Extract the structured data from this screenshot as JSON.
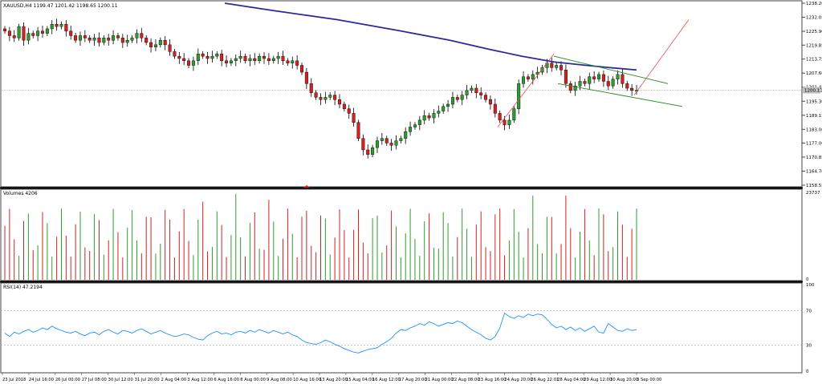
{
  "chart_data": [
    {
      "type": "candlestick",
      "title": "XAUUSD,H4  1199.47 1201.42 1198.65 1200.11",
      "current_price_label": "1200.11",
      "current_price": 1200.11,
      "ylim": [
        1158.55,
        1238.2
      ],
      "y_ticks": [
        "1238.20",
        "1232.05",
        "1225.90",
        "1219.85",
        "1213.75",
        "1207.60",
        "1201.45",
        "1195.30",
        "1189.15",
        "1183.00",
        "1177.00",
        "1170.85",
        "1164.70",
        "1158.55"
      ],
      "x_ticks": [
        "23 Jul 2018",
        "24 Jul 16:00",
        "26 Jul 00:00",
        "27 Jul 08:00",
        "30 Jul 12:00",
        "31 Jul 20:00",
        "2 Aug 04:00",
        "3 Aug 12:00",
        "6 Aug 16:00",
        "8 Aug 00:00",
        "9 Aug 08:00",
        "10 Aug 16:00",
        "13 Aug 20:00",
        "15 Aug 04:00",
        "16 Aug 12:00",
        "17 Aug 20:00",
        "21 Aug 00:00",
        "22 Aug 08:00",
        "23 Aug 16:00",
        "24 Aug 20:00",
        "26 Aug 22:01",
        "28 Aug 04:00",
        "29 Aug 12:00",
        "30 Aug 20:00",
        "3 Sep 00:00"
      ],
      "candles_close": [
        1226,
        1224,
        1223,
        1228,
        1222,
        1225,
        1224,
        1226,
        1225,
        1227,
        1229,
        1228,
        1229,
        1226,
        1224,
        1222,
        1224,
        1223,
        1222,
        1223,
        1221,
        1223,
        1222,
        1224,
        1223,
        1221,
        1222,
        1223,
        1225,
        1223,
        1221,
        1219,
        1220,
        1222,
        1220,
        1217,
        1215,
        1214,
        1213,
        1211,
        1213,
        1216,
        1215,
        1214,
        1215,
        1216,
        1213,
        1212,
        1213,
        1214,
        1215,
        1213,
        1214,
        1213,
        1215,
        1214,
        1213,
        1214,
        1215,
        1213,
        1212,
        1213,
        1211,
        1208,
        1203,
        1199,
        1197,
        1196,
        1197,
        1198,
        1196,
        1194,
        1192,
        1190,
        1186,
        1179,
        1174,
        1172,
        1175,
        1178,
        1179,
        1177,
        1176,
        1178,
        1179,
        1182,
        1184,
        1185,
        1187,
        1189,
        1188,
        1190,
        1191,
        1193,
        1194,
        1197,
        1196,
        1198,
        1200,
        1201,
        1199,
        1198,
        1196,
        1194,
        1190,
        1187,
        1185,
        1187,
        1192,
        1203,
        1206,
        1205,
        1207,
        1208,
        1210,
        1212,
        1210,
        1211,
        1209,
        1203,
        1200,
        1202,
        1204,
        1203,
        1206,
        1205,
        1207,
        1204,
        1202,
        1205,
        1207,
        1203,
        1201,
        1200,
        1200
      ]
    },
    {
      "type": "bar",
      "title": "Volumes 4206",
      "y_ticks": [
        "23737",
        "0"
      ],
      "ylim": [
        0,
        23737
      ]
    },
    {
      "type": "line",
      "title": "RSI(14) 47.2194",
      "y_ticks": [
        "100",
        "70",
        "30",
        "0"
      ],
      "ylim": [
        0,
        100
      ],
      "levels": [
        70,
        30
      ],
      "values": [
        44,
        40,
        45,
        43,
        46,
        48,
        45,
        47,
        50,
        48,
        52,
        49,
        47,
        45,
        44,
        46,
        43,
        41,
        44,
        45,
        42,
        46,
        48,
        45,
        43,
        47,
        46,
        44,
        47,
        49,
        46,
        43,
        45,
        47,
        44,
        42,
        40,
        41,
        43,
        42,
        39,
        37,
        36,
        41,
        44,
        46,
        43,
        44,
        42,
        45,
        46,
        44,
        47,
        45,
        48,
        46,
        44,
        47,
        45,
        43,
        45,
        42,
        40,
        36,
        33,
        32,
        31,
        33,
        36,
        34,
        31,
        29,
        26,
        24,
        22,
        21,
        23,
        25,
        26,
        27,
        31,
        34,
        38,
        44,
        48,
        47,
        50,
        52,
        55,
        53,
        57,
        55,
        52,
        54,
        56,
        55,
        58,
        56,
        52,
        48,
        45,
        42,
        38,
        36,
        40,
        50,
        67,
        63,
        61,
        64,
        62,
        66,
        64,
        66,
        65,
        60,
        54,
        50,
        52,
        48,
        51,
        47,
        50,
        46,
        49,
        52,
        45,
        44,
        55,
        51,
        47,
        46,
        49,
        47,
        48
      ]
    },
    {
      "type": "line",
      "title": "",
      "colors": {
        "ma": "#2b2b9c",
        "trend_red": "#e84a4a",
        "channel": "#1e8c1e",
        "bull": "#2e9b2e",
        "bear": "#d32020"
      }
    }
  ]
}
